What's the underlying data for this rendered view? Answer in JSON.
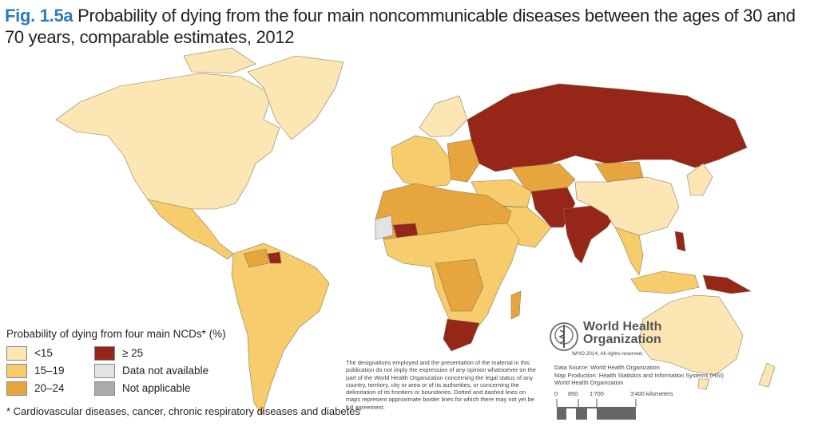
{
  "title": {
    "fig_label": "Fig. 1.5a",
    "text": "Probability of dying from the four main noncommunicable diseases between the ages of 30 and 70 years, comparable estimates, 2012"
  },
  "legend": {
    "title": "Probability of dying from four main NCDs* (%)",
    "items": [
      {
        "label": "<15",
        "color": "#fbe6b4"
      },
      {
        "label": "≥ 25",
        "color": "#952618"
      },
      {
        "label": "15–19",
        "color": "#f6cc6c"
      },
      {
        "label": "Data not available",
        "color": "#e3e3e3"
      },
      {
        "label": "20–24",
        "color": "#e6a53d"
      },
      {
        "label": "Not applicable",
        "color": "#ababab"
      }
    ],
    "footnote": "* Cardiovascular diseases, cancer, chronic respiratory diseases and diabetes"
  },
  "disclaimer": "The designations employed and the presentation of the material in this publication do not imply the expression of any opinion whatsoever on the part of the World Health Organization concerning the legal status of any country, territory, city or area or of its authorities, or concerning the delimitation of its frontiers or boundaries. Dotted and dashed lines on maps represent approximate border lines for which there may not yet be full agreement.",
  "who": {
    "name_line1": "World Health",
    "name_line2": "Organization",
    "rights": "WHO 2014, All rights reserved."
  },
  "source": {
    "data_source": "Data Source: World Health Organization",
    "map_production": "Map Production: Health Statistics and Information Systems (HSI)",
    "org": "World Health Organization"
  },
  "scale": {
    "ticks": [
      "0",
      "850",
      "1'700",
      "3'400 kilometers"
    ]
  }
}
